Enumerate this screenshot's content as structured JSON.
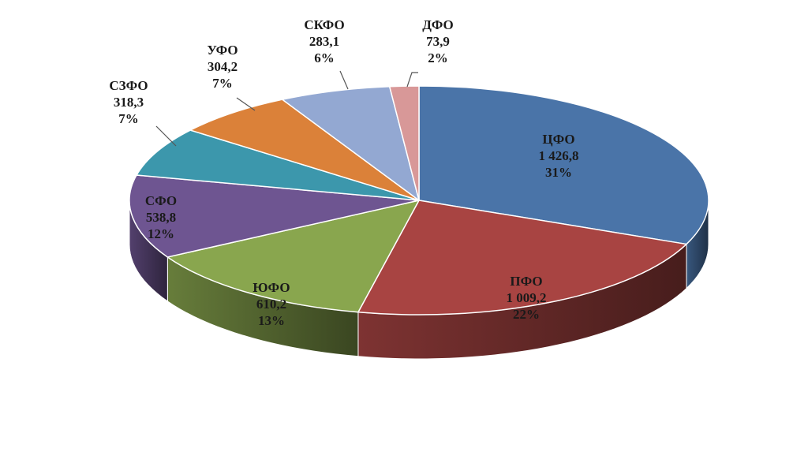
{
  "chart_data": {
    "type": "pie",
    "style": "3d",
    "start_angle_deg": 90,
    "direction": "clockwise",
    "categories": [
      "ЦФО",
      "ПФО",
      "ЮФО",
      "СФО",
      "СЗФО",
      "УФО",
      "СКФО",
      "ДФО"
    ],
    "values": [
      1426.8,
      1009.2,
      610.2,
      538.8,
      318.3,
      304.2,
      283.1,
      73.9
    ],
    "value_labels": [
      "1 426,8",
      "1 009,2",
      "610,2",
      "538,8",
      "318,3",
      "304,2",
      "283,1",
      "73,9"
    ],
    "percent_labels": [
      "31%",
      "22%",
      "13%",
      "12%",
      "7%",
      "7%",
      "6%",
      "2%"
    ],
    "colors": [
      "#4a74a8",
      "#a84442",
      "#89a64e",
      "#6e5591",
      "#3c97ac",
      "#db8139",
      "#93a8d2",
      "#d89898"
    ],
    "title": "",
    "legend": "none"
  }
}
